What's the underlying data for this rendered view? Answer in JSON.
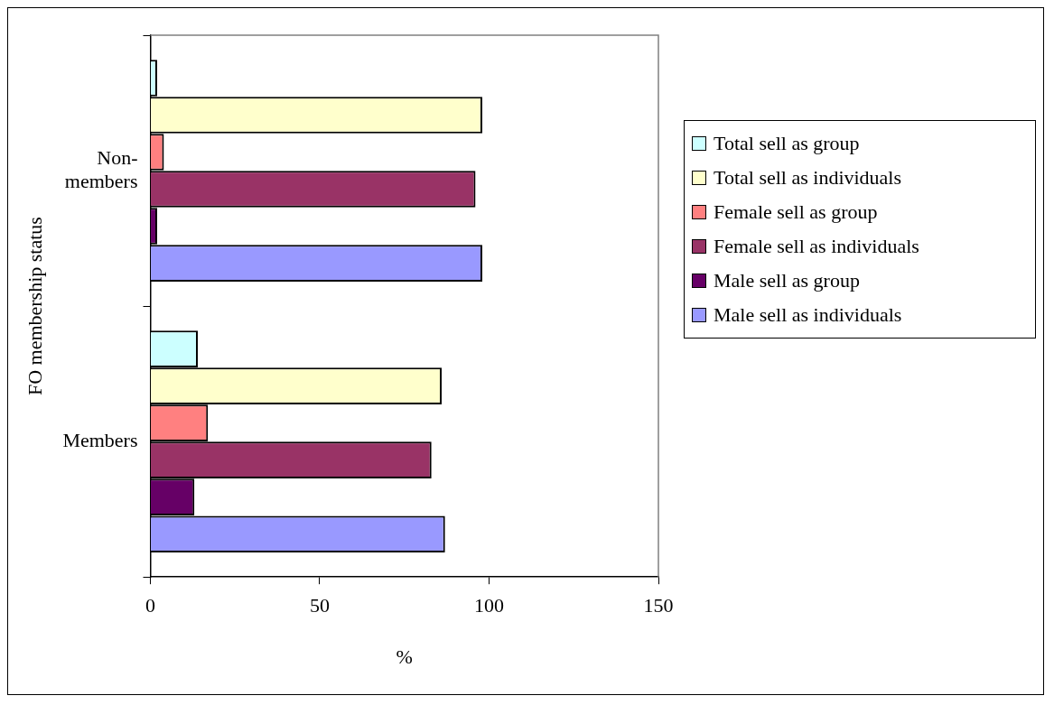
{
  "chart_data": {
    "type": "bar",
    "orientation": "horizontal",
    "xlabel": "%",
    "ylabel": "FO membership status",
    "categories": [
      "Non-members",
      "Members"
    ],
    "series": [
      {
        "name": "Total sell as group",
        "color": "#ccffff",
        "values": [
          2,
          14
        ]
      },
      {
        "name": "Total sell as individuals",
        "color": "#ffffcc",
        "values": [
          98,
          86
        ]
      },
      {
        "name": "Female sell as group",
        "color": "#ff8080",
        "values": [
          4,
          17
        ]
      },
      {
        "name": "Female sell as individuals",
        "color": "#993366",
        "values": [
          96,
          83
        ]
      },
      {
        "name": "Male sell as group",
        "color": "#660066",
        "values": [
          2,
          13
        ]
      },
      {
        "name": "Male sell as individuals",
        "color": "#9999ff",
        "values": [
          98,
          87
        ]
      }
    ],
    "xlim": [
      0,
      150
    ],
    "xticks": [
      0,
      50,
      100,
      150
    ],
    "grid": false,
    "legend": "right"
  }
}
